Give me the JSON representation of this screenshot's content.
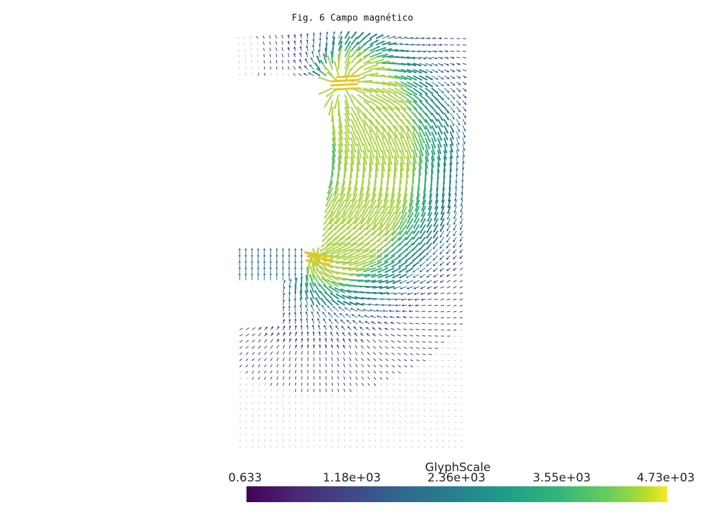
{
  "figure": {
    "title": "Fig. 6 Campo magnético"
  },
  "colorbar": {
    "title": "GlyphScale",
    "ticks": [
      "0.633",
      "1.18e+03",
      "2.36e+03",
      "3.55e+03",
      "4.73e+03"
    ],
    "range": [
      0.633,
      4730
    ],
    "colormap": "viridis",
    "colors": [
      "#440154",
      "#3e4989",
      "#26828e",
      "#35b779",
      "#fde725"
    ]
  },
  "chart_data": {
    "type": "vector-field",
    "color_by": "GlyphScale",
    "legend_placement": "bottom"
  }
}
